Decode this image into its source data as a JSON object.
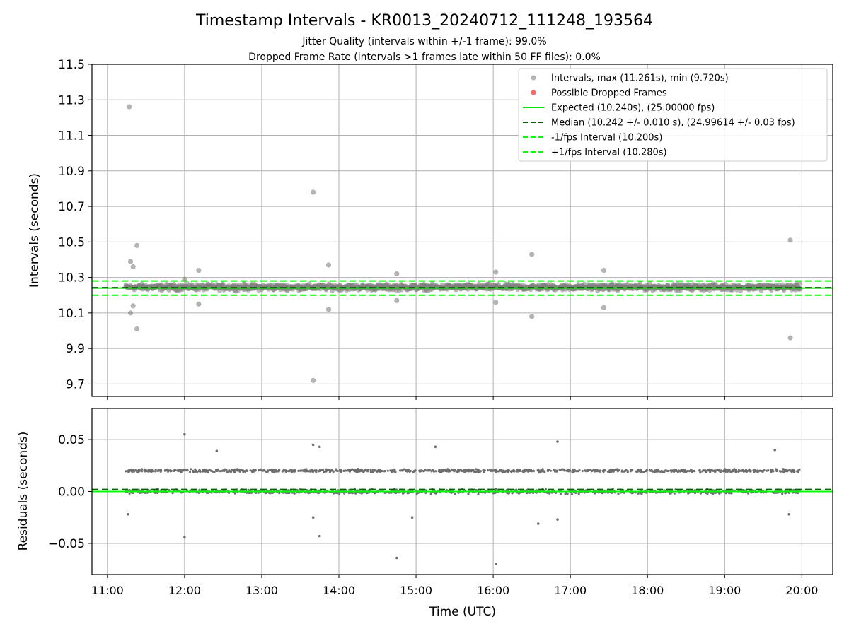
{
  "header": {
    "title": "Timestamp Intervals - KR0013_20240712_111248_193564",
    "subtitle_1": "Jitter Quality (intervals within +/-1 frame): 99.0%",
    "subtitle_2": "Dropped Frame Rate (intervals >1 frames late within 50 FF files): 0.0%"
  },
  "colors": {
    "intervals": "#808080",
    "dropped": "#ff0000",
    "expected": "#00e600",
    "median": "#006400",
    "bounds": "#00ff00",
    "residual_zero": "#00ff00",
    "residual_median": "#006400",
    "grid": "#b0b0b0"
  },
  "chart_data": [
    {
      "type": "scatter",
      "panel": "intervals",
      "ylabel": "Intervals (seconds)",
      "xlim": [
        "10:48",
        "20:24"
      ],
      "ylim": [
        9.63,
        11.5
      ],
      "y_ticks": [
        "11.5",
        "11.3",
        "11.1",
        "10.9",
        "10.7",
        "10.5",
        "10.3",
        "10.1",
        "9.9",
        "9.7"
      ],
      "x_ticks": [
        "11:00",
        "12:00",
        "13:00",
        "14:00",
        "15:00",
        "16:00",
        "17:00",
        "18:00",
        "19:00",
        "20:00"
      ],
      "grid": true,
      "legend_position": "upper-right",
      "legend": [
        "Intervals, max (11.261s), min (9.720s)",
        "Possible Dropped Frames",
        "Expected (10.240s), (25.00000 fps)",
        "Median (10.242 +/- 0.010 s), (24.99614 +/- 0.03 fps)",
        "-1/fps Interval (10.200s)",
        "+1/fps Interval (10.280s)"
      ],
      "series": [
        {
          "name": "Intervals, max (11.261s), min (9.720s)",
          "band": {
            "x_start": "11:14",
            "x_end": "19:59",
            "y_center": 10.245,
            "y_low": 10.22,
            "y_high": 10.27
          },
          "outliers": [
            {
              "x": "11:17",
              "y": 11.261
            },
            {
              "x": "11:18",
              "y": 10.39
            },
            {
              "x": "11:20",
              "y": 10.36
            },
            {
              "x": "11:23",
              "y": 10.48
            },
            {
              "x": "11:18",
              "y": 10.1
            },
            {
              "x": "11:20",
              "y": 10.14
            },
            {
              "x": "11:23",
              "y": 10.01
            },
            {
              "x": "12:00",
              "y": 10.29
            },
            {
              "x": "12:11",
              "y": 10.34
            },
            {
              "x": "12:11",
              "y": 10.15
            },
            {
              "x": "13:40",
              "y": 10.78
            },
            {
              "x": "13:40",
              "y": 9.72
            },
            {
              "x": "13:52",
              "y": 10.37
            },
            {
              "x": "13:52",
              "y": 10.12
            },
            {
              "x": "14:45",
              "y": 10.32
            },
            {
              "x": "14:45",
              "y": 10.17
            },
            {
              "x": "16:02",
              "y": 10.33
            },
            {
              "x": "16:02",
              "y": 10.16
            },
            {
              "x": "16:30",
              "y": 10.43
            },
            {
              "x": "16:30",
              "y": 10.08
            },
            {
              "x": "17:26",
              "y": 10.34
            },
            {
              "x": "17:26",
              "y": 10.13
            },
            {
              "x": "19:51",
              "y": 10.51
            },
            {
              "x": "19:51",
              "y": 9.96
            }
          ]
        },
        {
          "name": "Possible Dropped Frames",
          "points": []
        }
      ],
      "reference_lines": [
        {
          "name": "Expected (10.240s), (25.00000 fps)",
          "y": 10.24,
          "style": "solid"
        },
        {
          "name": "Median (10.242 +/- 0.010 s), (24.99614 +/- 0.03 fps)",
          "y": 10.242,
          "style": "dashed"
        },
        {
          "name": "-1/fps Interval (10.200s)",
          "y": 10.2,
          "style": "dashed"
        },
        {
          "name": "+1/fps Interval (10.280s)",
          "y": 10.28,
          "style": "dashed"
        }
      ]
    },
    {
      "type": "scatter",
      "panel": "residuals",
      "ylabel": "Residuals (seconds)",
      "xlabel": "Time (UTC)",
      "xlim": [
        "10:48",
        "20:24"
      ],
      "ylim": [
        -0.08,
        0.08
      ],
      "y_ticks": [
        "0.05",
        "0.00",
        "−0.05"
      ],
      "x_ticks": [
        "11:00",
        "12:00",
        "13:00",
        "14:00",
        "15:00",
        "16:00",
        "17:00",
        "18:00",
        "19:00",
        "20:00"
      ],
      "grid": true,
      "series": [
        {
          "name": "",
          "band_upper": {
            "x_start": "11:14",
            "x_end": "19:59",
            "y_center": 0.02,
            "spread": 0.002
          },
          "band_lower": {
            "x_start": "11:14",
            "x_end": "19:59",
            "y_center": 0.0,
            "spread": 0.003
          },
          "outliers": [
            {
              "x": "12:00",
              "y": 0.055
            },
            {
              "x": "12:00",
              "y": -0.044
            },
            {
              "x": "13:40",
              "y": 0.045
            },
            {
              "x": "13:45",
              "y": 0.043
            },
            {
              "x": "13:45",
              "y": -0.043
            },
            {
              "x": "15:15",
              "y": 0.043
            },
            {
              "x": "16:02",
              "y": -0.07
            },
            {
              "x": "14:45",
              "y": -0.064
            },
            {
              "x": "16:50",
              "y": 0.048
            },
            {
              "x": "16:35",
              "y": -0.031
            },
            {
              "x": "16:50",
              "y": -0.027
            },
            {
              "x": "19:39",
              "y": 0.04
            },
            {
              "x": "12:25",
              "y": 0.039
            },
            {
              "x": "13:40",
              "y": -0.025
            },
            {
              "x": "11:16",
              "y": -0.022
            },
            {
              "x": "14:57",
              "y": -0.025
            },
            {
              "x": "19:50",
              "y": -0.022
            }
          ]
        }
      ],
      "reference_lines": [
        {
          "name": "",
          "y": 0.0,
          "style": "solid"
        },
        {
          "name": "",
          "y": 0.002,
          "style": "dashed"
        }
      ]
    }
  ]
}
